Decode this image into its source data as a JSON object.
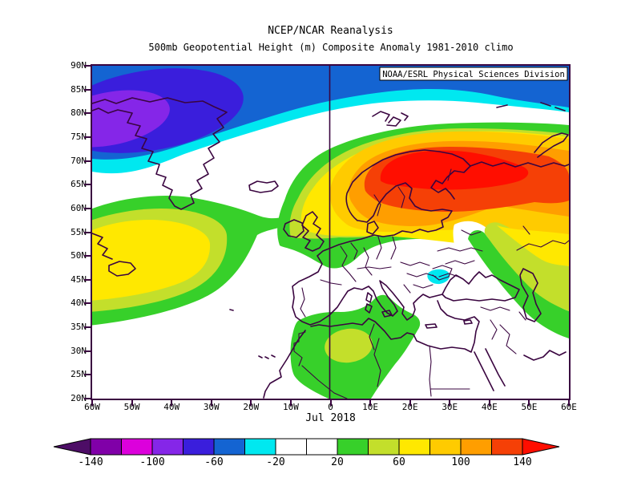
{
  "header": {
    "title_line1": "NCEP/NCAR Reanalysis",
    "title_line2": "500mb Geopotential Height (m) Composite Anomaly 1981-2010 climo"
  },
  "map": {
    "watermark": "NOAA/ESRL Physical Sciences Division",
    "date_label": "Jul 2018",
    "lat_ticks": [
      "90N",
      "85N",
      "80N",
      "75N",
      "70N",
      "65N",
      "60N",
      "55N",
      "50N",
      "45N",
      "40N",
      "35N",
      "30N",
      "25N",
      "20N"
    ],
    "lon_ticks": [
      "60W",
      "50W",
      "40W",
      "30W",
      "20W",
      "10W",
      "0",
      "10E",
      "20E",
      "30E",
      "40E",
      "50E",
      "60E"
    ]
  },
  "colorbar": {
    "tick_labels": [
      "-140",
      "-100",
      "-60",
      "-20",
      "20",
      "60",
      "100",
      "140"
    ],
    "segment_keys": [
      "neg_140",
      "neg_120",
      "neg_100",
      "neg_80",
      "neg_60",
      "neg_40",
      "neutral",
      "neutral",
      "pos_20",
      "pos_40",
      "pos_60",
      "pos_80",
      "pos_100",
      "pos_120"
    ],
    "arrow_left_key": "negative_extreme",
    "arrow_right_key": "positive_extreme"
  },
  "palette": {
    "negative_extreme": "#4D0D66",
    "neg_140": "#8000A8",
    "neg_120": "#DC00DC",
    "neg_100": "#8526E8",
    "neg_80": "#3A1EDC",
    "neg_60": "#1464D2",
    "neg_40": "#00E8F0",
    "neutral": "#FFFFFF",
    "pos_20": "#37D02A",
    "pos_40": "#C3DF2B",
    "pos_60": "#FFE800",
    "pos_80": "#FFCB00",
    "pos_100": "#FF9E00",
    "pos_120": "#F54006",
    "positive_extreme": "#FF0E00",
    "coastline": "#3A0540",
    "frame": "#3A0540",
    "text": "#000000"
  },
  "data_summary": {
    "type": "filled-contour map",
    "variable": "500mb geopotential height anomaly (m)",
    "period": "Jul 2018",
    "climatology": "1981-2010",
    "lon_range": [
      "60W",
      "60E"
    ],
    "lat_range": [
      "20N",
      "90N"
    ],
    "contour_interval": 20,
    "colorbar_range": [
      -160,
      160
    ],
    "anomaly_centers": [
      {
        "location": "Scandinavia / NW Russia ~68N 30E",
        "value": "> +140"
      },
      {
        "location": "Arctic / N Greenland ~80N 50W",
        "value": "< -80"
      },
      {
        "location": "W Atlantic ~47N 45W",
        "value": "+60 to +80"
      },
      {
        "location": "N Africa ~30N 5E",
        "value": "+40 to +60"
      },
      {
        "location": "Romania / W Black Sea ~45N 28E",
        "value": "-20 to -40"
      }
    ]
  }
}
